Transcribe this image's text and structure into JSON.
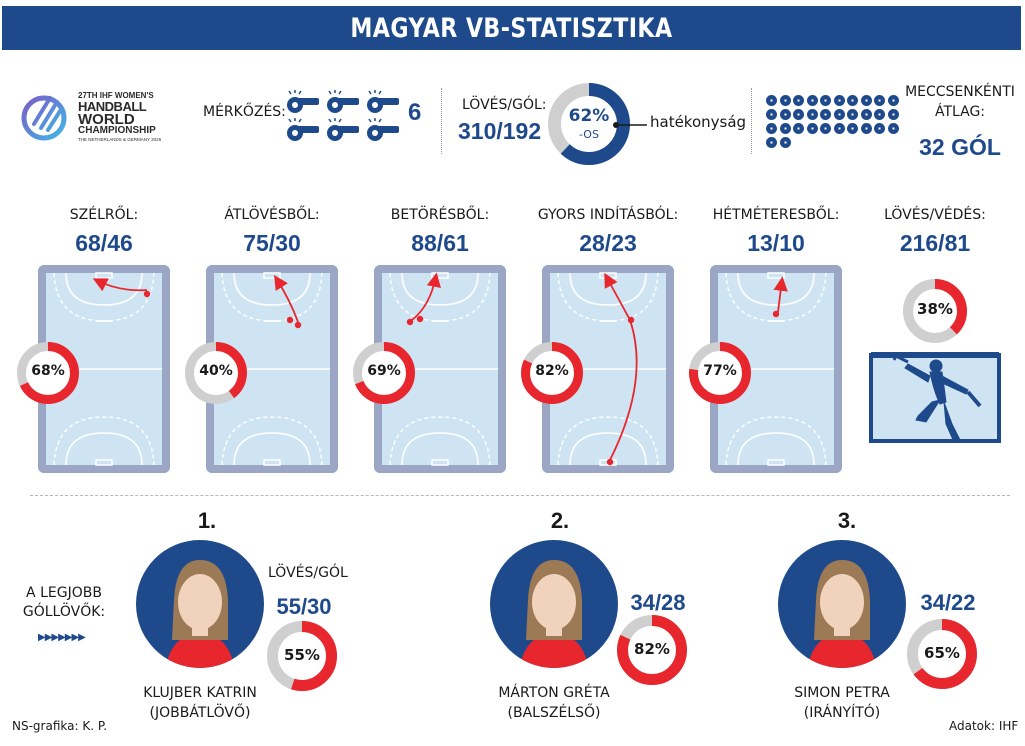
{
  "title": "MAGYAR VB-STATISZTIKA",
  "championship": {
    "line1": "27TH IHF WOMEN'S",
    "line2": "HANDBALL",
    "line3": "WORLD",
    "line4": "CHAMPIONSHIP",
    "line5": "THE NETHERLANDS & GERMANY 2025"
  },
  "matches": {
    "label": "MÉRKŐZÉS:",
    "value": "6",
    "icon": "whistle-icon"
  },
  "shots_goals": {
    "label": "LÖVÉS/GÓL:",
    "value": "310/192",
    "percent": "62%",
    "suffix": "-OS",
    "efficiency_label": "hatékonyság",
    "fraction": 0.62
  },
  "avg": {
    "label_line1": "MECCSENKÉNTI",
    "label_line2": "ÁTLAG:",
    "value": "32 GÓL",
    "ball_count": 32,
    "icon": "ball-icon"
  },
  "shot_types": [
    {
      "label": "SZÉLRŐL:",
      "value": "68/46",
      "percent": "68%",
      "fraction": 0.68
    },
    {
      "label": "ÁTLÖVÉSBŐL:",
      "value": "75/30",
      "percent": "40%",
      "fraction": 0.4
    },
    {
      "label": "BETÖRÉSBŐL:",
      "value": "88/61",
      "percent": "69%",
      "fraction": 0.69
    },
    {
      "label": "GYORS INDÍTÁSBÓL:",
      "value": "28/23",
      "percent": "82%",
      "fraction": 0.82
    },
    {
      "label": "HÉTMÉTERESBŐL:",
      "value": "13/10",
      "percent": "77%",
      "fraction": 0.77
    }
  ],
  "saves": {
    "label": "LÖVÉS/VÉDÉS:",
    "value": "216/81",
    "percent": "38%",
    "fraction": 0.38,
    "icon": "goalkeeper-icon"
  },
  "top_scorers_label": {
    "line1": "A LEGJOBB",
    "line2": "GÓLLÖVŐK:"
  },
  "players": [
    {
      "rank": "1.",
      "name": "KLUJBER KATRIN",
      "position": "(JOBBÁTLÖVŐ)",
      "stat_label": "LÖVÉS/GÓL",
      "stat": "55/30",
      "percent": "55%",
      "fraction": 0.55
    },
    {
      "rank": "2.",
      "name": "MÁRTON GRÉTA",
      "position": "(BALSZÉLSŐ)",
      "stat_label": "",
      "stat": "34/28",
      "percent": "82%",
      "fraction": 0.82
    },
    {
      "rank": "3.",
      "name": "SIMON PETRA",
      "position": "(IRÁNYÍTÓ)",
      "stat_label": "",
      "stat": "34/22",
      "percent": "65%",
      "fraction": 0.65
    }
  ],
  "footer": {
    "left": "NS-grafika: K. P.",
    "right": "Adatok: IHF"
  },
  "colors": {
    "blue": "#1e4a8c",
    "red": "#e8262d",
    "grey": "#cfcfcf",
    "court": "#cfe4f3",
    "court_border": "#9aa6c4"
  }
}
